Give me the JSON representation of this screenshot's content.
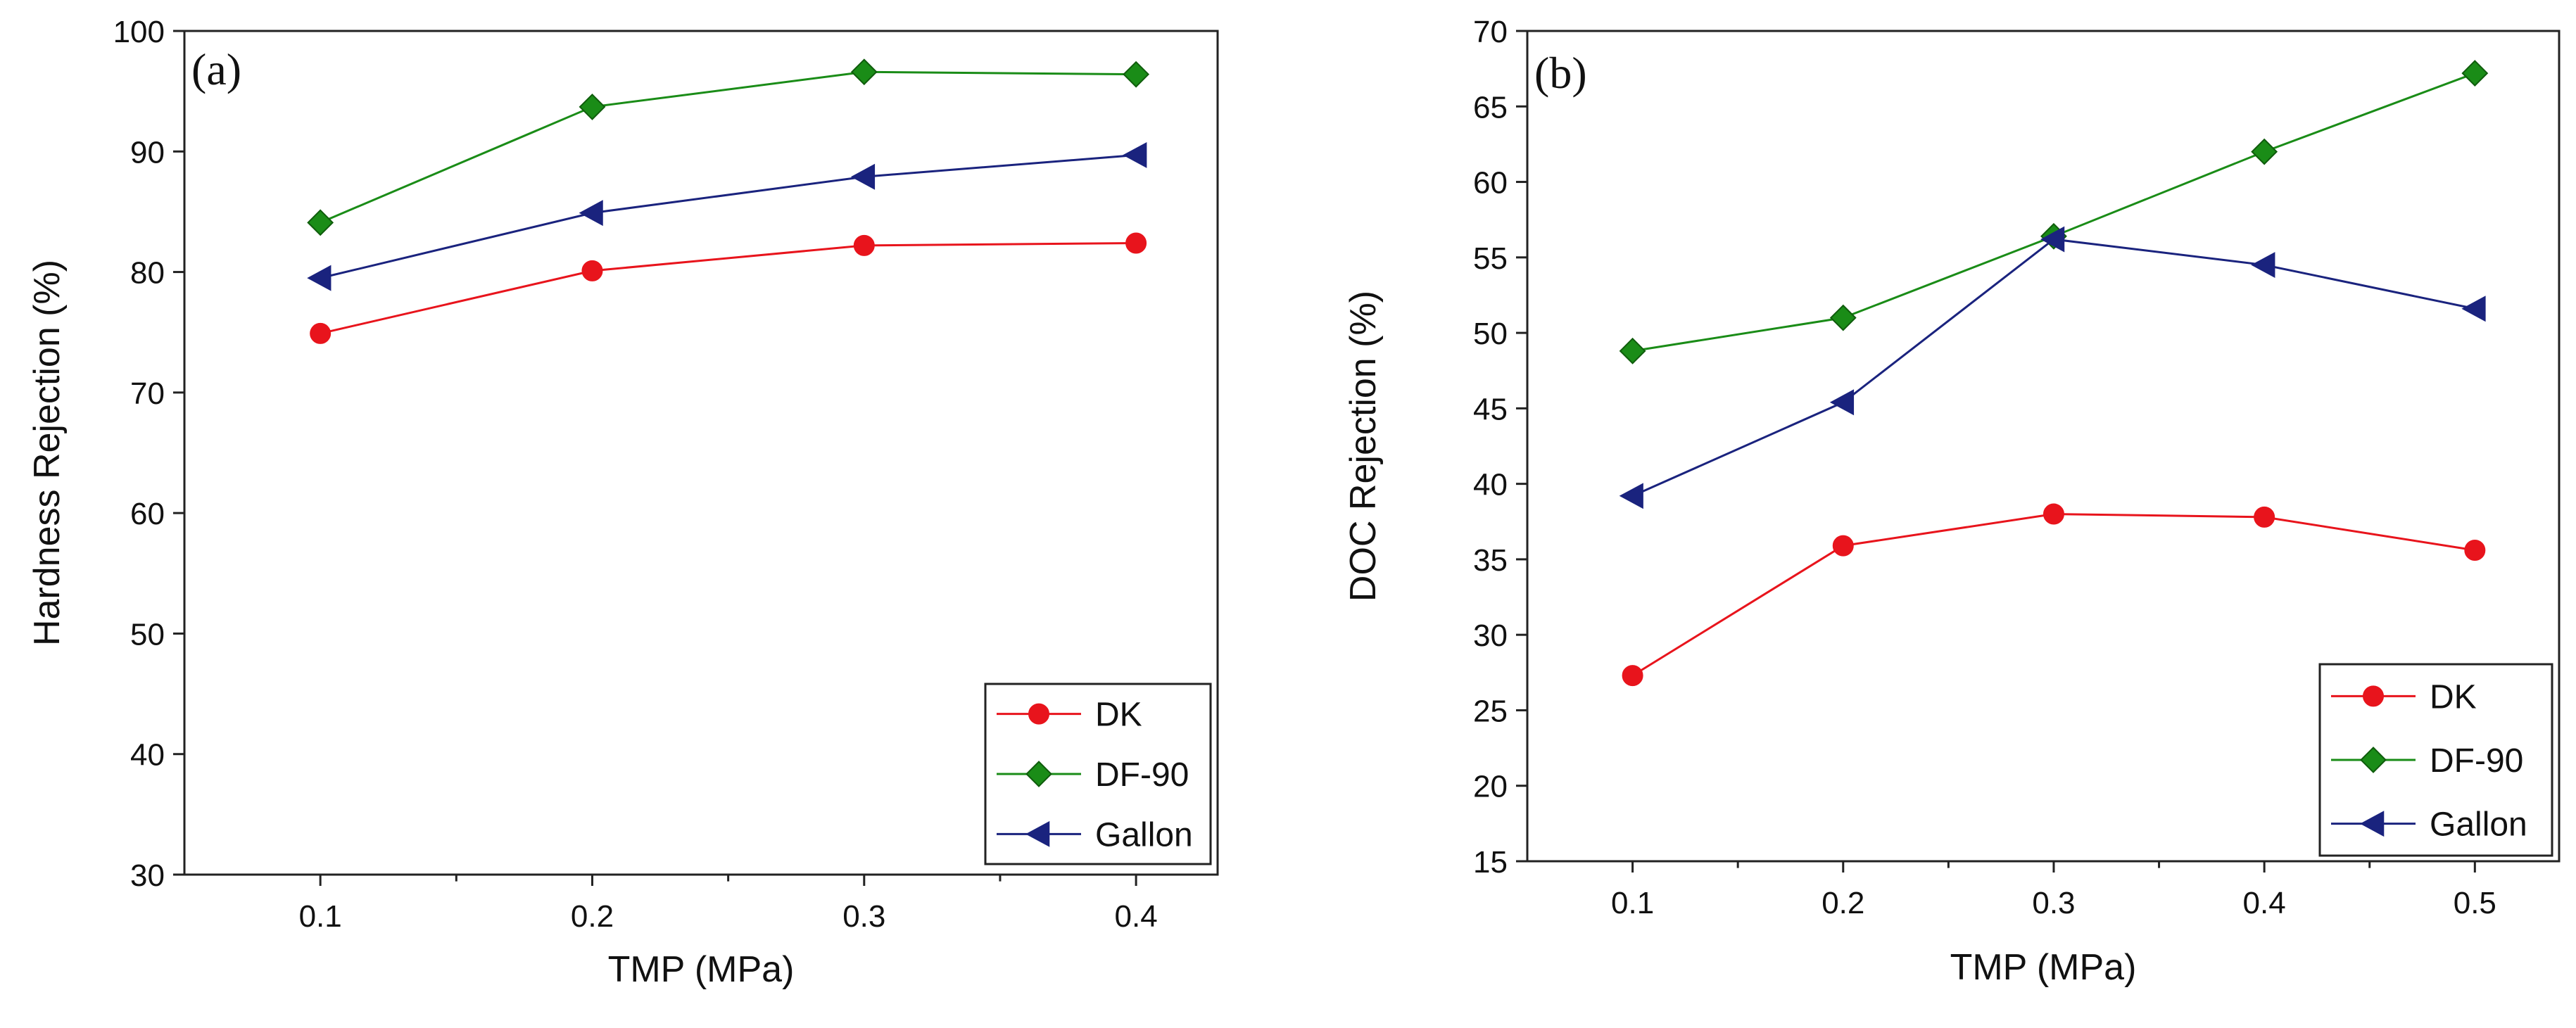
{
  "figure": {
    "caption": "",
    "panels": [
      "a",
      "b"
    ]
  },
  "chart_data": [
    {
      "type": "line",
      "panel_label": "(a)",
      "title": "",
      "xlabel": "TMP (MPa)",
      "ylabel": "Hardness Rejection  (%)",
      "xlim": [
        0.05,
        0.43
      ],
      "ylim": [
        30,
        100
      ],
      "xticks": [
        0.1,
        0.2,
        0.3,
        0.4
      ],
      "xtick_labels": [
        "0.1",
        "0.2",
        "0.3",
        "0.4"
      ],
      "yticks": [
        30,
        40,
        50,
        60,
        70,
        80,
        90,
        100
      ],
      "ytick_labels": [
        "30",
        "40",
        "50",
        "60",
        "70",
        "80",
        "90",
        "100"
      ],
      "grid": false,
      "legend_position": "bottom-right",
      "x": [
        0.1,
        0.2,
        0.3,
        0.4
      ],
      "series": [
        {
          "name": "DK",
          "values": [
            74.9,
            80.1,
            82.2,
            82.4
          ],
          "color": "#e8141c",
          "marker": "circle"
        },
        {
          "name": "DF-90",
          "values": [
            84.1,
            93.7,
            96.6,
            96.4
          ],
          "color": "#1a8c17",
          "marker": "diamond"
        },
        {
          "name": "Gallon",
          "values": [
            79.5,
            84.9,
            87.9,
            89.7
          ],
          "color": "#1a237e",
          "marker": "triangle-left"
        }
      ]
    },
    {
      "type": "line",
      "panel_label": "(b)",
      "title": "",
      "xlabel": "TMP (MPa)",
      "ylabel": "DOC Rejection  (%)",
      "xlim": [
        0.05,
        0.54
      ],
      "ylim": [
        15,
        70
      ],
      "xticks": [
        0.1,
        0.2,
        0.3,
        0.4,
        0.5
      ],
      "xtick_labels": [
        "0.1",
        "0.2",
        "0.3",
        "0.4",
        "0.5"
      ],
      "yticks": [
        15,
        20,
        25,
        30,
        35,
        40,
        45,
        50,
        55,
        60,
        65,
        70
      ],
      "ytick_labels": [
        "15",
        "20",
        "25",
        "30",
        "35",
        "40",
        "45",
        "50",
        "55",
        "60",
        "65",
        "70"
      ],
      "grid": false,
      "legend_position": "bottom-right",
      "x": [
        0.1,
        0.2,
        0.3,
        0.4,
        0.5
      ],
      "series": [
        {
          "name": "DK",
          "values": [
            27.3,
            35.9,
            38.0,
            37.8,
            35.6
          ],
          "color": "#e8141c",
          "marker": "circle"
        },
        {
          "name": "DF-90",
          "values": [
            48.8,
            51.0,
            56.4,
            62.0,
            67.2
          ],
          "color": "#1a8c17",
          "marker": "diamond"
        },
        {
          "name": "Gallon",
          "values": [
            39.2,
            45.4,
            56.2,
            54.5,
            51.6
          ],
          "color": "#1a237e",
          "marker": "triangle-left"
        }
      ]
    }
  ]
}
